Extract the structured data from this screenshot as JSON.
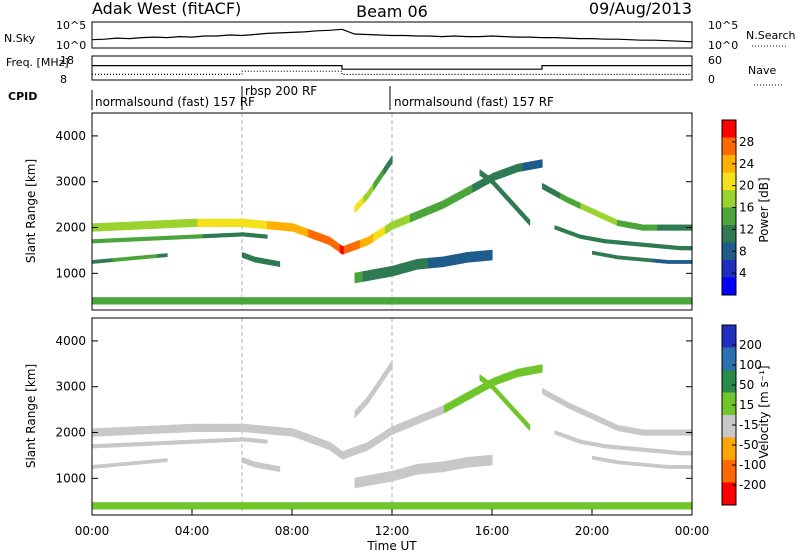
{
  "header": {
    "station": "Adak West (fitACF)",
    "beam": "Beam 06",
    "date": "09/Aug/2013"
  },
  "colors": {
    "background": "#ffffff",
    "axis": "#000000",
    "grid": "#9a9a9a"
  },
  "chart_data": [
    {
      "id": "nsky-nsearch",
      "type": "line",
      "left_label": "N.Sky",
      "right_label": "N.Search",
      "left_ticks": [
        "10^5",
        "10^0"
      ],
      "right_ticks": [
        "10^5",
        "10^0"
      ],
      "xlim_hours": [
        0,
        24
      ],
      "series": [
        {
          "style": "solid",
          "x": [
            0,
            0.5,
            1,
            1.5,
            2,
            2.5,
            3,
            3.5,
            4,
            4.5,
            5,
            5.5,
            6,
            6.5,
            7,
            7.5,
            8,
            8.5,
            9,
            9.5,
            10,
            10.5,
            11,
            11.5,
            12,
            12.5,
            13,
            13.5,
            14,
            14.5,
            15,
            15.5,
            16,
            16.5,
            17,
            17.5,
            18,
            18.5,
            19,
            19.5,
            20,
            20.5,
            21,
            21.5,
            22,
            22.5,
            23,
            23.5,
            24
          ],
          "y": [
            1.6,
            1.7,
            1.9,
            1.8,
            2.0,
            2.1,
            2.0,
            2.2,
            2.1,
            2.3,
            2.3,
            2.5,
            2.4,
            2.6,
            2.8,
            2.9,
            3.0,
            3.1,
            3.3,
            3.4,
            3.6,
            2.7,
            2.6,
            2.5,
            2.4,
            2.4,
            2.3,
            2.3,
            2.2,
            2.3,
            2.2,
            2.2,
            2.3,
            2.2,
            2.1,
            2.1,
            2.0,
            2.0,
            1.9,
            1.8,
            1.8,
            1.7,
            1.7,
            1.6,
            1.5,
            1.5,
            1.4,
            1.3,
            1.2
          ]
        }
      ]
    },
    {
      "id": "frequency-nave",
      "type": "line",
      "left_label": "Freq. [MHz]",
      "right_label": "Nave",
      "left_ticks": [
        "18",
        "8"
      ],
      "right_ticks": [
        "60",
        "0"
      ],
      "ylim_left": [
        8,
        18
      ],
      "ylim_right": [
        0,
        60
      ],
      "xlim_hours": [
        0,
        24
      ],
      "series": [
        {
          "style": "solid",
          "axis": "left",
          "x": [
            0,
            10.0,
            10.0,
            18.0,
            18.0,
            24
          ],
          "y": [
            14.0,
            14.0,
            12.5,
            12.5,
            14.0,
            14.0
          ]
        },
        {
          "style": "dotted",
          "axis": "right",
          "x": [
            0,
            6.0,
            6.0,
            10.0,
            10.0,
            11.0,
            11.0,
            24
          ],
          "y": [
            14,
            14,
            22,
            22,
            14,
            14,
            14,
            14
          ]
        }
      ]
    },
    {
      "id": "cpid",
      "type": "table",
      "label": "CPID",
      "segments": [
        {
          "label": "normalsound (fast) 157 RF",
          "start": 0,
          "end": 6.0
        },
        {
          "label": "rbsp 200 RF",
          "start": 6.0,
          "end": 12.0
        },
        {
          "label": "normalsound (fast) 157 RF",
          "start": 12.0,
          "end": 24
        }
      ]
    },
    {
      "id": "power",
      "type": "heatmap",
      "ylabel": "Slant Range [km]",
      "yticks": [
        1000,
        2000,
        3000,
        4000
      ],
      "ylim": [
        200,
        4500
      ],
      "xlim_hours": [
        0,
        24
      ],
      "colorbar": {
        "label": "Power [dB]",
        "ticks": [
          "28",
          "24",
          "20",
          "16",
          "12",
          "8",
          "4"
        ],
        "colors": [
          "#ff0000",
          "#ff6a00",
          "#ffb000",
          "#f5e11a",
          "#9ad22e",
          "#4aa53a",
          "#2f7a52",
          "#1f5c8c",
          "#1f2fbf",
          "#0000ff"
        ],
        "range": [
          0,
          32
        ]
      },
      "bands": [
        {
          "x": [
            0.0,
            2.0,
            4.0,
            6.0,
            8.0,
            9.5,
            10.0,
            11.0,
            12.0,
            14.0,
            16.0,
            17.0,
            18.0
          ],
          "y": [
            2000,
            2050,
            2100,
            2100,
            2000,
            1700,
            1500,
            1700,
            2050,
            2500,
            3100,
            3300,
            3400
          ],
          "width": 180,
          "value": [
            18,
            18,
            19,
            21,
            24,
            28,
            29,
            24,
            17,
            14,
            12,
            10,
            8
          ]
        },
        {
          "x": [
            0.0,
            2.0,
            4.0,
            6.0,
            7.0
          ],
          "y": [
            1700,
            1750,
            1800,
            1850,
            1800
          ],
          "width": 90,
          "value": [
            14,
            14,
            13,
            12,
            12
          ]
        },
        {
          "x": [
            6.0,
            6.5,
            7.0,
            7.5
          ],
          "y": [
            1400,
            1300,
            1250,
            1200
          ],
          "width": 120,
          "value": [
            10,
            11,
            12,
            11
          ]
        },
        {
          "x": [
            0.0,
            1.0,
            2.0,
            3.0
          ],
          "y": [
            1250,
            1300,
            1350,
            1400
          ],
          "width": 80,
          "value": [
            12,
            13,
            14,
            12
          ]
        },
        {
          "x": [
            10.5,
            11.0,
            11.5,
            12.0
          ],
          "y": [
            2400,
            2700,
            3100,
            3500
          ],
          "width": 160,
          "value": [
            22,
            18,
            14,
            10
          ]
        },
        {
          "x": [
            10.5,
            12.0,
            13.0,
            14.0,
            15.0,
            16.0
          ],
          "y": [
            900,
            1050,
            1200,
            1250,
            1350,
            1400
          ],
          "width": 230,
          "value": [
            13,
            12,
            10,
            9,
            9,
            8
          ]
        },
        {
          "x": [
            15.5,
            16.0,
            16.5,
            17.0,
            17.5
          ],
          "y": [
            3200,
            3000,
            2700,
            2400,
            2100
          ],
          "width": 130,
          "value": [
            10,
            10,
            11,
            12,
            10
          ]
        },
        {
          "x": [
            18.0,
            19.0,
            20.0,
            21.0,
            22.0,
            23.0,
            24.0
          ],
          "y": [
            2900,
            2600,
            2350,
            2100,
            2000,
            2000,
            2000
          ],
          "width": 130,
          "value": [
            10,
            14,
            18,
            16,
            14,
            12,
            12
          ]
        },
        {
          "x": [
            18.5,
            19.5,
            20.5,
            21.5,
            22.5,
            23.5,
            24.0
          ],
          "y": [
            2000,
            1800,
            1700,
            1650,
            1600,
            1550,
            1550
          ],
          "width": 90,
          "value": [
            10,
            12,
            11,
            11,
            10,
            10,
            10
          ]
        },
        {
          "x": [
            20.0,
            21.0,
            22.0,
            23.0,
            24.0
          ],
          "y": [
            1450,
            1350,
            1300,
            1250,
            1250
          ],
          "width": 80,
          "value": [
            10,
            10,
            10,
            9,
            9
          ]
        },
        {
          "x": [
            0.0,
            4.0,
            8.0,
            12.0,
            16.0,
            20.0,
            24.0
          ],
          "y": [
            400,
            400,
            400,
            400,
            400,
            400,
            400
          ],
          "width": 160,
          "value": [
            16,
            16,
            16,
            16,
            16,
            16,
            16
          ]
        }
      ]
    },
    {
      "id": "velocity",
      "type": "heatmap",
      "xlabel": "Time UT",
      "ylabel": "Slant Range [km]",
      "yticks": [
        1000,
        2000,
        3000,
        4000
      ],
      "ylim": [
        200,
        4500
      ],
      "xlim_hours": [
        0,
        24
      ],
      "xticks": [
        "00:00",
        "04:00",
        "08:00",
        "12:00",
        "16:00",
        "20:00",
        "00:00"
      ],
      "colorbar": {
        "label": "Velocity [m s⁻¹]",
        "ticks": [
          "200",
          "100",
          "50",
          "15",
          "-15",
          "-50",
          "-100",
          "-200"
        ],
        "colors": [
          "#1f2fbf",
          "#2a6fb0",
          "#2a8a4a",
          "#6fc62a",
          "#c8c8c8",
          "#ffa500",
          "#ff6a00",
          "#ff0000"
        ],
        "range": [
          -250,
          250
        ]
      },
      "bands": [
        {
          "x": [
            0.0,
            2.0,
            4.0,
            6.0,
            8.0,
            9.5,
            10.0,
            11.0,
            12.0,
            14.0,
            16.0,
            17.0,
            18.0
          ],
          "y": [
            2000,
            2050,
            2100,
            2100,
            2000,
            1700,
            1500,
            1700,
            2050,
            2500,
            3100,
            3300,
            3400
          ],
          "width": 180,
          "value": [
            0,
            0,
            0,
            0,
            0,
            0,
            0,
            0,
            0,
            0,
            30,
            30,
            0
          ]
        },
        {
          "x": [
            0.0,
            2.0,
            4.0,
            6.0,
            7.0
          ],
          "y": [
            1700,
            1750,
            1800,
            1850,
            1800
          ],
          "width": 90,
          "value": [
            0,
            0,
            0,
            0,
            0
          ]
        },
        {
          "x": [
            6.0,
            6.5,
            7.0,
            7.5
          ],
          "y": [
            1400,
            1300,
            1250,
            1200
          ],
          "width": 120,
          "value": [
            0,
            0,
            0,
            0
          ]
        },
        {
          "x": [
            0.0,
            1.0,
            2.0,
            3.0
          ],
          "y": [
            1250,
            1300,
            1350,
            1400
          ],
          "width": 80,
          "value": [
            0,
            0,
            0,
            0
          ]
        },
        {
          "x": [
            10.5,
            11.0,
            11.5,
            12.0
          ],
          "y": [
            2400,
            2700,
            3100,
            3500
          ],
          "width": 160,
          "value": [
            -40,
            -40,
            -40,
            -40
          ]
        },
        {
          "x": [
            10.5,
            12.0,
            13.0,
            14.0,
            15.0,
            16.0
          ],
          "y": [
            900,
            1050,
            1200,
            1250,
            1350,
            1400
          ],
          "width": 230,
          "value": [
            -40,
            -40,
            -40,
            -40,
            -40,
            -40
          ]
        },
        {
          "x": [
            15.5,
            16.0,
            16.5,
            17.0,
            17.5
          ],
          "y": [
            3200,
            3000,
            2700,
            2400,
            2100
          ],
          "width": 130,
          "value": [
            30,
            30,
            30,
            30,
            30
          ]
        },
        {
          "x": [
            18.0,
            19.0,
            20.0,
            21.0,
            22.0,
            23.0,
            24.0
          ],
          "y": [
            2900,
            2600,
            2350,
            2100,
            2000,
            2000,
            2000
          ],
          "width": 130,
          "value": [
            0,
            0,
            0,
            0,
            0,
            0,
            0
          ]
        },
        {
          "x": [
            18.5,
            19.5,
            20.5,
            21.5,
            22.5,
            23.5,
            24.0
          ],
          "y": [
            2000,
            1800,
            1700,
            1650,
            1600,
            1550,
            1550
          ],
          "width": 90,
          "value": [
            0,
            0,
            0,
            0,
            0,
            0,
            0
          ]
        },
        {
          "x": [
            20.0,
            21.0,
            22.0,
            23.0,
            24.0
          ],
          "y": [
            1450,
            1350,
            1300,
            1250,
            1250
          ],
          "width": 80,
          "value": [
            0,
            0,
            0,
            0,
            0
          ]
        },
        {
          "x": [
            0.0,
            4.0,
            8.0,
            12.0,
            16.0,
            20.0,
            24.0
          ],
          "y": [
            400,
            400,
            400,
            400,
            400,
            400,
            400
          ],
          "width": 160,
          "value": [
            30,
            30,
            30,
            30,
            30,
            30,
            30
          ]
        }
      ]
    }
  ]
}
